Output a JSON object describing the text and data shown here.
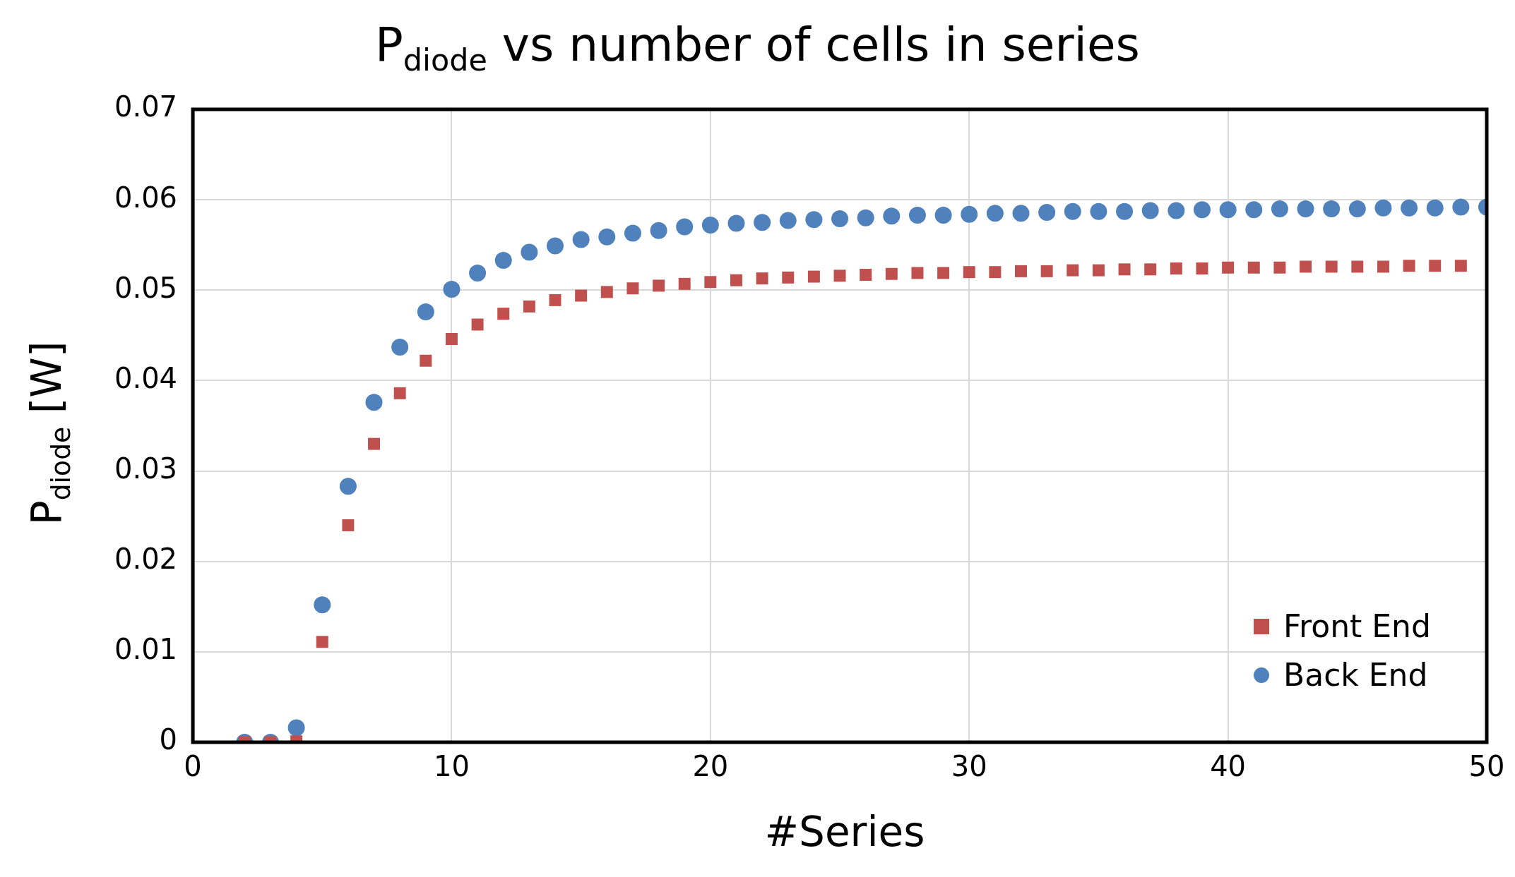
{
  "chart_data": {
    "type": "scatter",
    "title": "P$_{diode}$ vs number of cells in series",
    "xlabel": "#Series",
    "ylabel": "P$_{diode}$ [W]",
    "xlim": [
      0,
      50
    ],
    "xticks": [
      0,
      10,
      20,
      30,
      40,
      50
    ],
    "ylim": [
      0,
      0.07
    ],
    "yticks": [
      0,
      0.01,
      0.02,
      0.03,
      0.04,
      0.05,
      0.06,
      0.07
    ],
    "grid": true,
    "legend": "bottom right",
    "series": [
      {
        "name": "Front End",
        "color": "#c0504d",
        "marker": "square",
        "x": [
          2,
          3,
          4,
          5,
          6,
          7,
          8,
          9,
          10,
          11,
          12,
          13,
          14,
          15,
          16,
          17,
          18,
          19,
          20,
          21,
          22,
          23,
          24,
          25,
          26,
          27,
          28,
          29,
          30,
          31,
          32,
          33,
          34,
          35,
          36,
          37,
          38,
          39,
          40,
          41,
          42,
          43,
          44,
          45,
          46,
          47,
          48,
          49
        ],
        "values": [
          0,
          0,
          0.0001,
          0.0111,
          0.024,
          0.033,
          0.0386,
          0.0422,
          0.0446,
          0.0462,
          0.0474,
          0.0482,
          0.0489,
          0.0494,
          0.0498,
          0.0502,
          0.0505,
          0.0507,
          0.0509,
          0.0511,
          0.0513,
          0.0514,
          0.0515,
          0.0516,
          0.0517,
          0.0518,
          0.0519,
          0.0519,
          0.052,
          0.052,
          0.0521,
          0.0521,
          0.0522,
          0.0522,
          0.0523,
          0.0523,
          0.0524,
          0.0524,
          0.0525,
          0.0525,
          0.0525,
          0.0526,
          0.0526,
          0.0526,
          0.0526,
          0.0527,
          0.0527,
          0.0527
        ]
      },
      {
        "name": "Back End",
        "color": "#4f81bd",
        "marker": "circle",
        "x": [
          2,
          3,
          4,
          5,
          6,
          7,
          8,
          9,
          10,
          11,
          12,
          13,
          14,
          15,
          16,
          17,
          18,
          19,
          20,
          21,
          22,
          23,
          24,
          25,
          26,
          27,
          28,
          29,
          30,
          31,
          32,
          33,
          34,
          35,
          36,
          37,
          38,
          39,
          40,
          41,
          42,
          43,
          44,
          45,
          46,
          47,
          48,
          49,
          50
        ],
        "values": [
          0,
          0,
          0.0016,
          0.0152,
          0.0283,
          0.0376,
          0.0437,
          0.0476,
          0.0501,
          0.0519,
          0.0533,
          0.0542,
          0.0549,
          0.0556,
          0.0559,
          0.0563,
          0.0566,
          0.057,
          0.0572,
          0.0574,
          0.0575,
          0.0577,
          0.0578,
          0.0579,
          0.058,
          0.0582,
          0.0583,
          0.0583,
          0.0584,
          0.0585,
          0.0585,
          0.0586,
          0.0587,
          0.0587,
          0.0587,
          0.0588,
          0.0588,
          0.0589,
          0.0589,
          0.0589,
          0.059,
          0.059,
          0.059,
          0.059,
          0.0591,
          0.0591,
          0.0591,
          0.0592,
          0.0592
        ]
      }
    ]
  }
}
